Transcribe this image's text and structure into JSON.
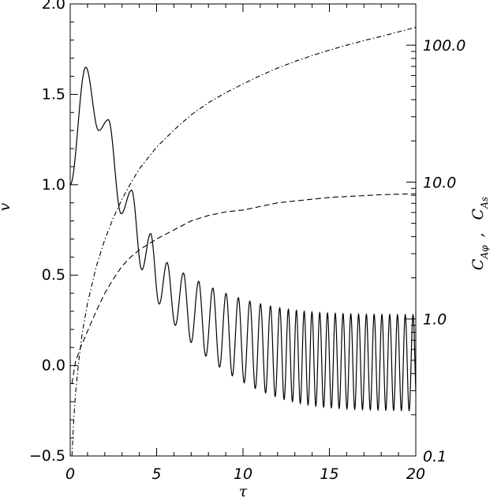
{
  "chart_data": {
    "type": "line",
    "title": "",
    "xlabel": "τ",
    "ylabel_left": "v",
    "ylabel_right": {
      "first": {
        "main": "C",
        "sub": "Aφ"
      },
      "separator": ",",
      "second": {
        "main": "C",
        "sub": "As"
      }
    },
    "xlim": [
      0,
      20
    ],
    "ylim_left": [
      -0.5,
      2.0
    ],
    "ylim_right": [
      0.1,
      200
    ],
    "right_scale": "log",
    "grid": false,
    "legend": "none",
    "x_ticks": [
      "0",
      "5",
      "10",
      "15",
      "20"
    ],
    "y_ticks_left": [
      "−0.5",
      "0.0",
      "0.5",
      "1.0",
      "1.5",
      "2.0"
    ],
    "y_ticks_right": [
      "0.1",
      "1.0",
      "10.0",
      "100.0"
    ],
    "series": [
      {
        "style": "solid",
        "axis": "left",
        "description_points": {
          "peaks": [
            [
              0.0,
              1.0
            ],
            [
              0.9,
              1.65
            ],
            [
              1.65,
              1.3
            ],
            [
              2.2,
              1.36
            ],
            [
              2.95,
              0.84
            ],
            [
              3.55,
              0.97
            ],
            [
              4.15,
              0.53
            ],
            [
              4.65,
              0.73
            ],
            [
              5.15,
              0.34
            ],
            [
              5.6,
              0.57
            ]
          ],
          "envelope_upper_end": 0.28,
          "envelope_lower_end": -0.25,
          "oscillation_period_end": 0.45
        }
      },
      {
        "style": "dash-dot",
        "axis": "right",
        "x": [
          0.1,
          0.2,
          0.3,
          0.5,
          0.7,
          1,
          1.5,
          2,
          2.5,
          3,
          3.5,
          4,
          5,
          6,
          7,
          8,
          9,
          10,
          11,
          12,
          13,
          14,
          15,
          16,
          17,
          18,
          19,
          20
        ],
        "y": [
          0.1,
          0.18,
          0.28,
          0.5,
          0.8,
          1.3,
          2.4,
          3.8,
          5.5,
          7.5,
          9.8,
          12.5,
          18,
          24,
          31,
          38,
          45,
          52,
          60,
          68,
          76,
          84,
          92,
          100,
          108,
          116,
          125,
          135
        ]
      },
      {
        "style": "dashed",
        "axis": "left",
        "x": [
          0.1,
          0.3,
          0.6,
          1,
          1.5,
          2,
          2.5,
          3,
          3.5,
          4,
          5,
          6,
          7,
          8,
          9,
          10,
          11,
          12,
          13,
          14,
          15,
          16,
          17,
          18,
          19,
          20
        ],
        "y": [
          -0.1,
          0.02,
          0.1,
          0.19,
          0.3,
          0.4,
          0.48,
          0.55,
          0.6,
          0.64,
          0.7,
          0.75,
          0.8,
          0.83,
          0.85,
          0.86,
          0.88,
          0.9,
          0.91,
          0.92,
          0.93,
          0.935,
          0.94,
          0.945,
          0.948,
          0.95
        ]
      }
    ]
  }
}
